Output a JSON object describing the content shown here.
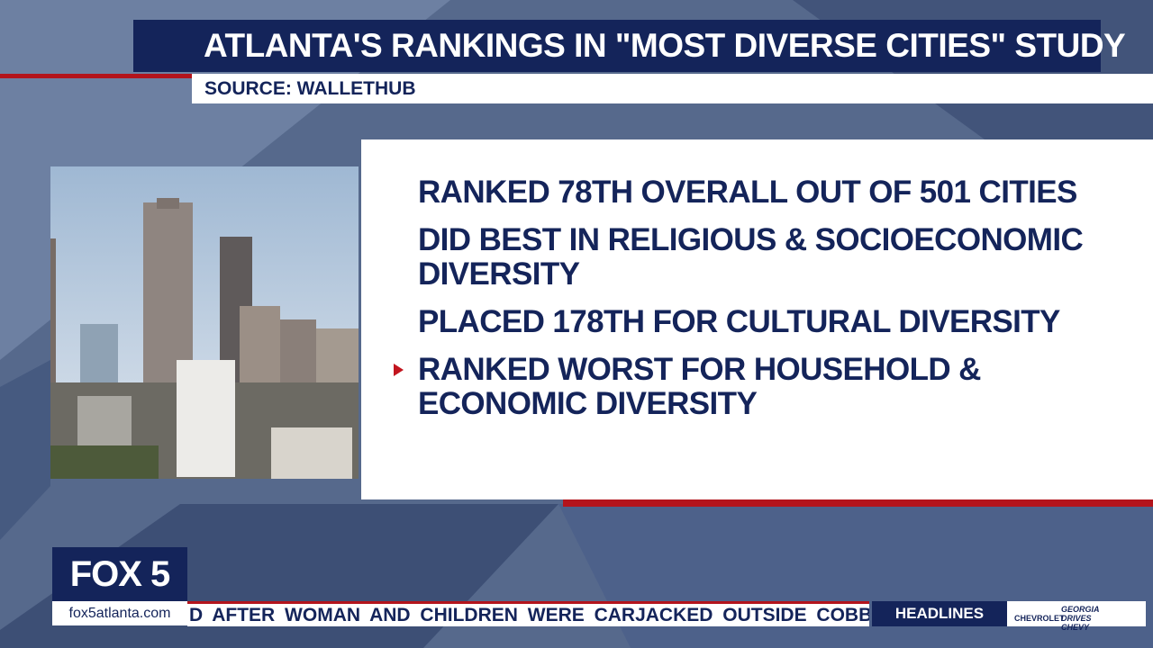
{
  "header": {
    "title": "ATLANTA'S RANKINGS IN \"MOST DIVERSE CITIES\" STUDY",
    "source": "SOURCE: WALLETHUB"
  },
  "bullets": [
    "RANKED 78TH OVERALL OUT OF 501 CITIES",
    "DID BEST IN RELIGIOUS & SOCIOECONOMIC DIVERSITY",
    "PLACED 178TH FOR CULTURAL DIVERSITY",
    "RANKED WORST FOR HOUSEHOLD & ECONOMIC DIVERSITY"
  ],
  "logo": {
    "name": "FOX 5",
    "url": "fox5atlanta.com"
  },
  "ticker": {
    "text": "D AFTER WOMAN AND CHILDREN WERE CARJACKED OUTSIDE COBB",
    "section": "HEADLINES",
    "sponsor": "CHEVROLET",
    "sponsor_tag": "GEORGIA DRIVES CHEVY"
  }
}
